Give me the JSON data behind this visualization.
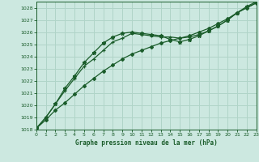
{
  "title": "Graphe pression niveau de la mer (hPa)",
  "background_color": "#cce8e0",
  "grid_color": "#b0d4c8",
  "line_color": "#1a5c2a",
  "xlim": [
    0,
    23
  ],
  "ylim": [
    1018,
    1028.5
  ],
  "xticks": [
    0,
    1,
    2,
    3,
    4,
    5,
    6,
    7,
    8,
    9,
    10,
    11,
    12,
    13,
    14,
    15,
    16,
    17,
    18,
    19,
    20,
    21,
    22,
    23
  ],
  "yticks": [
    1018,
    1019,
    1020,
    1021,
    1022,
    1023,
    1024,
    1025,
    1026,
    1027,
    1028
  ],
  "series1": {
    "x": [
      0,
      1,
      2,
      3,
      4,
      5,
      6,
      7,
      8,
      9,
      10,
      11,
      12,
      13,
      14,
      15,
      16,
      17,
      18,
      19,
      20,
      21,
      22,
      23
    ],
    "y": [
      1018.1,
      1018.8,
      1019.6,
      1020.2,
      1020.9,
      1021.6,
      1022.2,
      1022.8,
      1023.3,
      1023.8,
      1024.2,
      1024.5,
      1024.8,
      1025.1,
      1025.3,
      1025.5,
      1025.7,
      1026.0,
      1026.3,
      1026.7,
      1027.1,
      1027.6,
      1028.0,
      1028.4
    ]
  },
  "series2": {
    "x": [
      0,
      1,
      2,
      3,
      4,
      5,
      6,
      7,
      8,
      9,
      10,
      11,
      12,
      13,
      14,
      15,
      16,
      17,
      18,
      19,
      20,
      21,
      22,
      23
    ],
    "y": [
      1018.1,
      1019.0,
      1020.1,
      1021.2,
      1022.2,
      1023.2,
      1023.8,
      1024.5,
      1025.2,
      1025.5,
      1025.9,
      1025.8,
      1025.7,
      1025.6,
      1025.6,
      1025.5,
      1025.6,
      1025.8,
      1026.1,
      1026.5,
      1027.0,
      1027.6,
      1028.0,
      1028.4
    ]
  },
  "series3": {
    "x": [
      0,
      1,
      2,
      3,
      4,
      5,
      6,
      7,
      8,
      9,
      10,
      11,
      12,
      13,
      14,
      15,
      16,
      17,
      18,
      19,
      20,
      21,
      22,
      23
    ],
    "y": [
      1018.1,
      1019.0,
      1020.1,
      1021.4,
      1022.4,
      1023.5,
      1024.3,
      1025.1,
      1025.6,
      1025.9,
      1026.0,
      1025.9,
      1025.8,
      1025.7,
      1025.4,
      1025.2,
      1025.4,
      1025.7,
      1026.1,
      1026.5,
      1027.0,
      1027.6,
      1028.1,
      1028.5
    ]
  }
}
